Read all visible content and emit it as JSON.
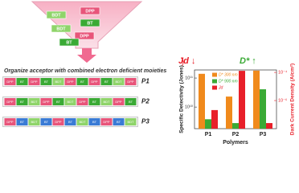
{
  "diagram": {
    "funnel_blocks": [
      "BDT",
      "DPP",
      "BT",
      "BDT",
      "DPP",
      "BT"
    ],
    "caption": "Organize acceptor with combined electron deficient moieties",
    "block_colors": {
      "DPP": "#e8557a",
      "BT": "#3aaa35",
      "BDT": "#8fd46a"
    },
    "chains": [
      {
        "name": "P1",
        "blocks": [
          "DPP",
          "BT",
          "DPP",
          "BT",
          "BDT",
          "DPP",
          "BT",
          "DPP",
          "BT",
          "BDT",
          "DPP"
        ]
      },
      {
        "name": "P2",
        "blocks": [
          "DPP",
          "BT",
          "BDT",
          "DPP",
          "BT",
          "BDT",
          "DPP",
          "BT",
          "BDT",
          "DPP",
          "BT"
        ]
      },
      {
        "name": "P3",
        "blocks": [
          "DPP",
          "BT",
          "BDT",
          "BT",
          "DPP",
          "BT",
          "BDT",
          "BT",
          "DPP",
          "BT",
          "BDT"
        ],
        "block_colors": {
          "BT": "#3a7bd5"
        }
      }
    ]
  },
  "chart_data": {
    "type": "bar",
    "annotations": [
      {
        "text": "Jd ↓",
        "color": "#e8202a"
      },
      {
        "text": "D* ↑",
        "color": "#3aaa35"
      }
    ],
    "categories": [
      "P1",
      "P2",
      "P3"
    ],
    "xlabel": "Polymers",
    "ylabel": "Specific Detectivity (Jones)",
    "y2label": "Dark Current Density (A/cm²)",
    "y2label_color": "#e8202a",
    "ylog": true,
    "y2log": true,
    "ylim": [
      1800000000,
      190000000000
    ],
    "yticks": [
      {
        "value": 10000000000,
        "label": "10¹⁰"
      },
      {
        "value": 100000000000,
        "label": "10¹¹"
      }
    ],
    "y2lim": [
      1e-08,
      0.00015
    ],
    "y2ticks": [
      {
        "value": 1e-06,
        "label": "10⁻⁶"
      },
      {
        "value": 0.0001,
        "label": "10⁻⁴"
      }
    ],
    "legend": "upper left",
    "series": [
      {
        "name": "D* 300 nm",
        "color": "#f08a1c",
        "values": [
          140000000000,
          23000000000,
          180000000000
        ]
      },
      {
        "name": "D* 900 nm",
        "color": "#3aaa35",
        "values": [
          3800000000,
          2800000000,
          41000000000
        ]
      },
      {
        "name": "Jd",
        "color": "#e8202a",
        "axis": "y2",
        "values": [
          2.1e-07,
          0.00013,
          2.5e-08
        ]
      }
    ]
  }
}
